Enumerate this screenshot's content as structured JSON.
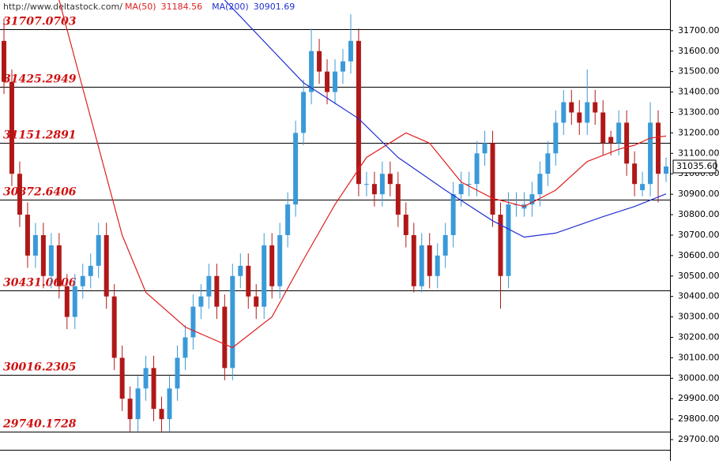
{
  "chart_data": {
    "type": "candlestick",
    "source": "http://www.deltastock.com/",
    "indicators": [
      {
        "name": "MA(50)",
        "value": 31184.56,
        "color": "#e02020"
      },
      {
        "name": "MA(200)",
        "value": 30901.69,
        "color": "#2030d0"
      }
    ],
    "ylim": [
      29650,
      31850
    ],
    "yticks": [
      {
        "value": 29700,
        "label": "29700.00"
      },
      {
        "value": 29800,
        "label": "29800.00"
      },
      {
        "value": 29900,
        "label": "29900.00"
      },
      {
        "value": 30000,
        "label": "30000.00"
      },
      {
        "value": 30100,
        "label": "30100.00"
      },
      {
        "value": 30200,
        "label": "30200.00"
      },
      {
        "value": 30300,
        "label": "30300.00"
      },
      {
        "value": 30400,
        "label": "30400.00"
      },
      {
        "value": 30500,
        "label": "30500.00"
      },
      {
        "value": 30600,
        "label": "30600.00"
      },
      {
        "value": 30700,
        "label": "30700.00"
      },
      {
        "value": 30800,
        "label": "30800.00"
      },
      {
        "value": 30900,
        "label": "30900.00"
      },
      {
        "value": 31000,
        "label": "31000.00"
      },
      {
        "value": 31100,
        "label": "31100.00"
      },
      {
        "value": 31200,
        "label": "31200.00"
      },
      {
        "value": 31300,
        "label": "31300.00"
      },
      {
        "value": 31400,
        "label": "31400.00"
      },
      {
        "value": 31500,
        "label": "31500.00"
      },
      {
        "value": 31600,
        "label": "31600.00"
      },
      {
        "value": 31700,
        "label": "31700.00"
      }
    ],
    "levels": [
      31707.0703,
      31425.2949,
      31151.2891,
      30872.6406,
      30431.0606,
      30016.2305,
      29740.1728
    ],
    "last_price": {
      "value": 31035.6,
      "label": "31035.60"
    },
    "up_color": "#3a9ad9",
    "down_color": "#b01818",
    "candles": [
      [
        31650,
        31760,
        31390,
        31450
      ],
      [
        31450,
        31510,
        30940,
        31000
      ],
      [
        31000,
        31060,
        30740,
        30800
      ],
      [
        30800,
        30860,
        30540,
        30600
      ],
      [
        30600,
        30760,
        30540,
        30700
      ],
      [
        30700,
        30760,
        30440,
        30500
      ],
      [
        30500,
        30710,
        30440,
        30650
      ],
      [
        30650,
        30710,
        30390,
        30450
      ],
      [
        30450,
        30510,
        30240,
        30300
      ],
      [
        30300,
        30510,
        30240,
        30450
      ],
      [
        30450,
        30560,
        30390,
        30500
      ],
      [
        30500,
        30610,
        30440,
        30550
      ],
      [
        30550,
        30760,
        30490,
        30700
      ],
      [
        30700,
        30760,
        30340,
        30400
      ],
      [
        30400,
        30460,
        30040,
        30100
      ],
      [
        30100,
        30160,
        29840,
        29900
      ],
      [
        29900,
        29960,
        29740,
        29800
      ],
      [
        29800,
        30010,
        29740,
        29950
      ],
      [
        29950,
        30110,
        29890,
        30050
      ],
      [
        30050,
        30110,
        29790,
        29850
      ],
      [
        29850,
        29910,
        29740,
        29800
      ],
      [
        29800,
        30010,
        29740,
        29950
      ],
      [
        29950,
        30160,
        29890,
        30100
      ],
      [
        30100,
        30260,
        30040,
        30200
      ],
      [
        30200,
        30410,
        30140,
        30350
      ],
      [
        30350,
        30460,
        30290,
        30400
      ],
      [
        30400,
        30560,
        30340,
        30500
      ],
      [
        30500,
        30560,
        30290,
        30350
      ],
      [
        30350,
        30410,
        29990,
        30050
      ],
      [
        30050,
        30560,
        29990,
        30500
      ],
      [
        30500,
        30610,
        30440,
        30550
      ],
      [
        30550,
        30610,
        30340,
        30400
      ],
      [
        30400,
        30460,
        30290,
        30350
      ],
      [
        30350,
        30710,
        30290,
        30650
      ],
      [
        30650,
        30710,
        30390,
        30450
      ],
      [
        30450,
        30760,
        30390,
        30700
      ],
      [
        30700,
        30910,
        30640,
        30850
      ],
      [
        30850,
        31260,
        30790,
        31200
      ],
      [
        31200,
        31460,
        31140,
        31400
      ],
      [
        31400,
        31710,
        31340,
        31600
      ],
      [
        31600,
        31660,
        31440,
        31500
      ],
      [
        31500,
        31560,
        31340,
        31400
      ],
      [
        31400,
        31560,
        31340,
        31500
      ],
      [
        31500,
        31610,
        31440,
        31550
      ],
      [
        31550,
        31780,
        31490,
        31650
      ],
      [
        31650,
        31710,
        30890,
        30950
      ],
      [
        30950,
        31010,
        30890,
        30950
      ],
      [
        30950,
        31010,
        30840,
        30900
      ],
      [
        30900,
        31060,
        30840,
        31000
      ],
      [
        31000,
        31060,
        30890,
        30950
      ],
      [
        30950,
        31010,
        30740,
        30800
      ],
      [
        30800,
        30860,
        30640,
        30700
      ],
      [
        30700,
        30760,
        30420,
        30450
      ],
      [
        30450,
        30710,
        30420,
        30650
      ],
      [
        30650,
        30710,
        30440,
        30500
      ],
      [
        30500,
        30660,
        30440,
        30600
      ],
      [
        30600,
        30760,
        30540,
        30700
      ],
      [
        30700,
        30960,
        30640,
        30900
      ],
      [
        30900,
        31010,
        30840,
        30950
      ],
      [
        30950,
        31010,
        30890,
        30950
      ],
      [
        30950,
        31160,
        30890,
        31100
      ],
      [
        31100,
        31210,
        31040,
        31150
      ],
      [
        31150,
        31210,
        30740,
        30800
      ],
      [
        30800,
        30860,
        30340,
        30500
      ],
      [
        30500,
        30910,
        30440,
        30850
      ],
      [
        30850,
        30910,
        30790,
        30850
      ],
      [
        30830,
        30910,
        30790,
        30850
      ],
      [
        30850,
        30960,
        30790,
        30900
      ],
      [
        30900,
        31060,
        30840,
        31000
      ],
      [
        31000,
        31160,
        30940,
        31100
      ],
      [
        31100,
        31310,
        31040,
        31250
      ],
      [
        31250,
        31410,
        31190,
        31350
      ],
      [
        31350,
        31410,
        31240,
        31300
      ],
      [
        31300,
        31360,
        31190,
        31250
      ],
      [
        31250,
        31510,
        31190,
        31350
      ],
      [
        31350,
        31410,
        31240,
        31300
      ],
      [
        31300,
        31360,
        31090,
        31150
      ],
      [
        31180,
        31210,
        31090,
        31150
      ],
      [
        31150,
        31310,
        31090,
        31250
      ],
      [
        31250,
        31310,
        30990,
        31050
      ],
      [
        31050,
        31110,
        30890,
        30950
      ],
      [
        30920,
        31010,
        30890,
        30950
      ],
      [
        30950,
        31350,
        30890,
        31250
      ],
      [
        31250,
        31310,
        30860,
        31000
      ],
      [
        31000,
        31080,
        30960,
        31035.6
      ]
    ],
    "series": [
      {
        "name": "MA(50)",
        "color": "#e02020",
        "x": [
          7,
          15,
          18,
          23,
          29,
          34,
          38,
          42,
          46,
          51,
          54,
          58,
          62,
          66,
          70,
          74,
          78,
          80,
          82,
          84
        ],
        "values": [
          31850,
          30700,
          30420,
          30250,
          30150,
          30300,
          30580,
          30850,
          31080,
          31200,
          31150,
          30960,
          30880,
          30840,
          30920,
          31060,
          31120,
          31140,
          31175,
          31184.56
        ]
      },
      {
        "name": "MA(200)",
        "color": "#2030d0",
        "x": [
          28,
          38,
          45,
          50,
          56,
          62,
          66,
          70,
          76,
          80,
          84
        ],
        "values": [
          31850,
          31445,
          31270,
          31080,
          30920,
          30770,
          30690,
          30710,
          30790,
          30840,
          30901.69
        ]
      }
    ]
  }
}
